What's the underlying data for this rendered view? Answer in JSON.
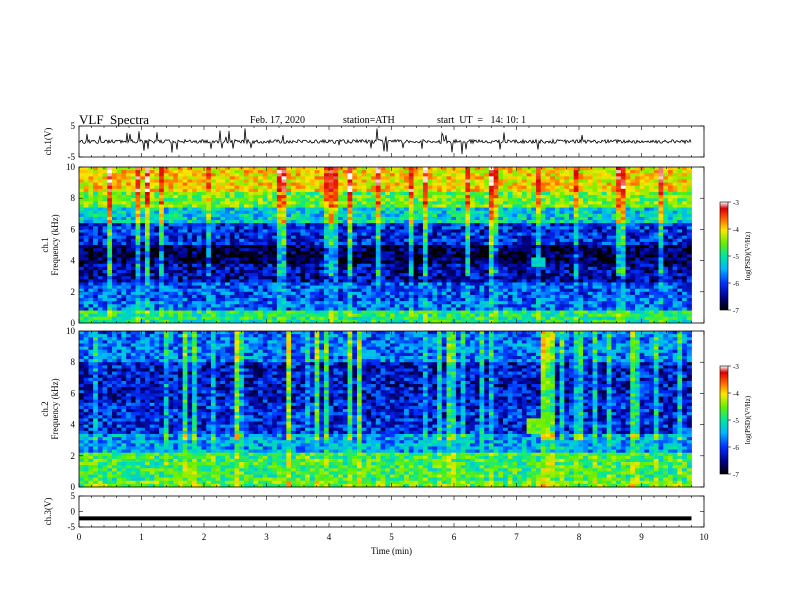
{
  "header": {
    "title": "VLF  Spectra",
    "date": "Feb. 17, 2020",
    "station": "station=ATH",
    "start": "start  UT  =   14: 10: 1"
  },
  "chart_data": [
    {
      "type": "line",
      "name": "ch1-timeseries",
      "ylabel": "ch.1(V)",
      "ylim": [
        -5,
        5
      ],
      "yticks": [
        "5",
        "-5"
      ],
      "xlim": [
        0,
        10
      ],
      "series": [
        {
          "color": "#000000",
          "baseline": 0,
          "noise": 0.6,
          "spikes": true,
          "x_end": 9.8
        }
      ]
    },
    {
      "type": "heatmap",
      "name": "ch1-spectrogram",
      "ylabel_top": "ch.1",
      "ylabel": "Frequency  (kHz)",
      "ylim": [
        0,
        10
      ],
      "yticks": [
        "0",
        "2",
        "4",
        "6",
        "8",
        "10"
      ],
      "xlim": [
        0,
        9.8
      ],
      "intensity_log_psd": [
        {
          "f": [
            0.0,
            0.8
          ],
          "v": -5.3
        },
        {
          "f": [
            0.8,
            1.5
          ],
          "v": -6.0
        },
        {
          "f": [
            1.5,
            2.6
          ],
          "v": -6.1
        },
        {
          "f": [
            2.6,
            3.8
          ],
          "v": -6.5
        },
        {
          "f": [
            3.8,
            5.0
          ],
          "v": -6.8
        },
        {
          "f": [
            5.0,
            6.5
          ],
          "v": -6.3
        },
        {
          "f": [
            6.5,
            7.5
          ],
          "v": -5.6
        },
        {
          "f": [
            7.5,
            8.5
          ],
          "v": -5.0
        },
        {
          "f": [
            8.5,
            10.0
          ],
          "v": -4.5
        }
      ],
      "event": {
        "t": [
          7.2,
          7.5
        ],
        "f": [
          3.7,
          4.1
        ],
        "v": -5.5
      },
      "colorbar": {
        "label": "log(PSD)(V²/Hz)",
        "range": [
          -7,
          -3
        ],
        "ticks": [
          "-3",
          "-4",
          "-5",
          "-6",
          "-7"
        ]
      }
    },
    {
      "type": "heatmap",
      "name": "ch2-spectrogram",
      "ylabel_top": "ch.2",
      "ylabel": "Frequency  (kHz)",
      "ylim": [
        0,
        10
      ],
      "yticks": [
        "0",
        "2",
        "4",
        "6",
        "8",
        "10"
      ],
      "xlim": [
        0,
        9.8
      ],
      "intensity_log_psd": [
        {
          "f": [
            0.0,
            0.5
          ],
          "v": -5.0
        },
        {
          "f": [
            0.5,
            2.2
          ],
          "v": -5.2
        },
        {
          "f": [
            2.2,
            3.5
          ],
          "v": -5.8
        },
        {
          "f": [
            3.5,
            5.5
          ],
          "v": -6.3
        },
        {
          "f": [
            5.5,
            8.0
          ],
          "v": -6.4
        },
        {
          "f": [
            8.0,
            10.0
          ],
          "v": -6.0
        }
      ],
      "event": {
        "t": [
          7.15,
          7.45
        ],
        "f": [
          3.5,
          4.3
        ],
        "v": -5.0
      },
      "colorbar": {
        "label": "log(PSD)(V²/Hz)",
        "range": [
          -7,
          -3
        ],
        "ticks": [
          "-3",
          "-4",
          "-5",
          "-6",
          "-7"
        ]
      }
    },
    {
      "type": "line",
      "name": "ch3-timeseries",
      "ylabel": "ch.3(V)",
      "ylim": [
        -5,
        5
      ],
      "yticks": [
        "5",
        "0",
        "-5"
      ],
      "xlim": [
        0,
        10
      ],
      "series": [
        {
          "color": "#000000",
          "baseline": -2.2,
          "noise": 0,
          "spikes": false,
          "x_end": 9.8
        }
      ]
    }
  ],
  "xaxis": {
    "label": "Time  (min)",
    "ticks": [
      "0",
      "1",
      "2",
      "3",
      "4",
      "5",
      "6",
      "7",
      "8",
      "9",
      "10"
    ]
  }
}
